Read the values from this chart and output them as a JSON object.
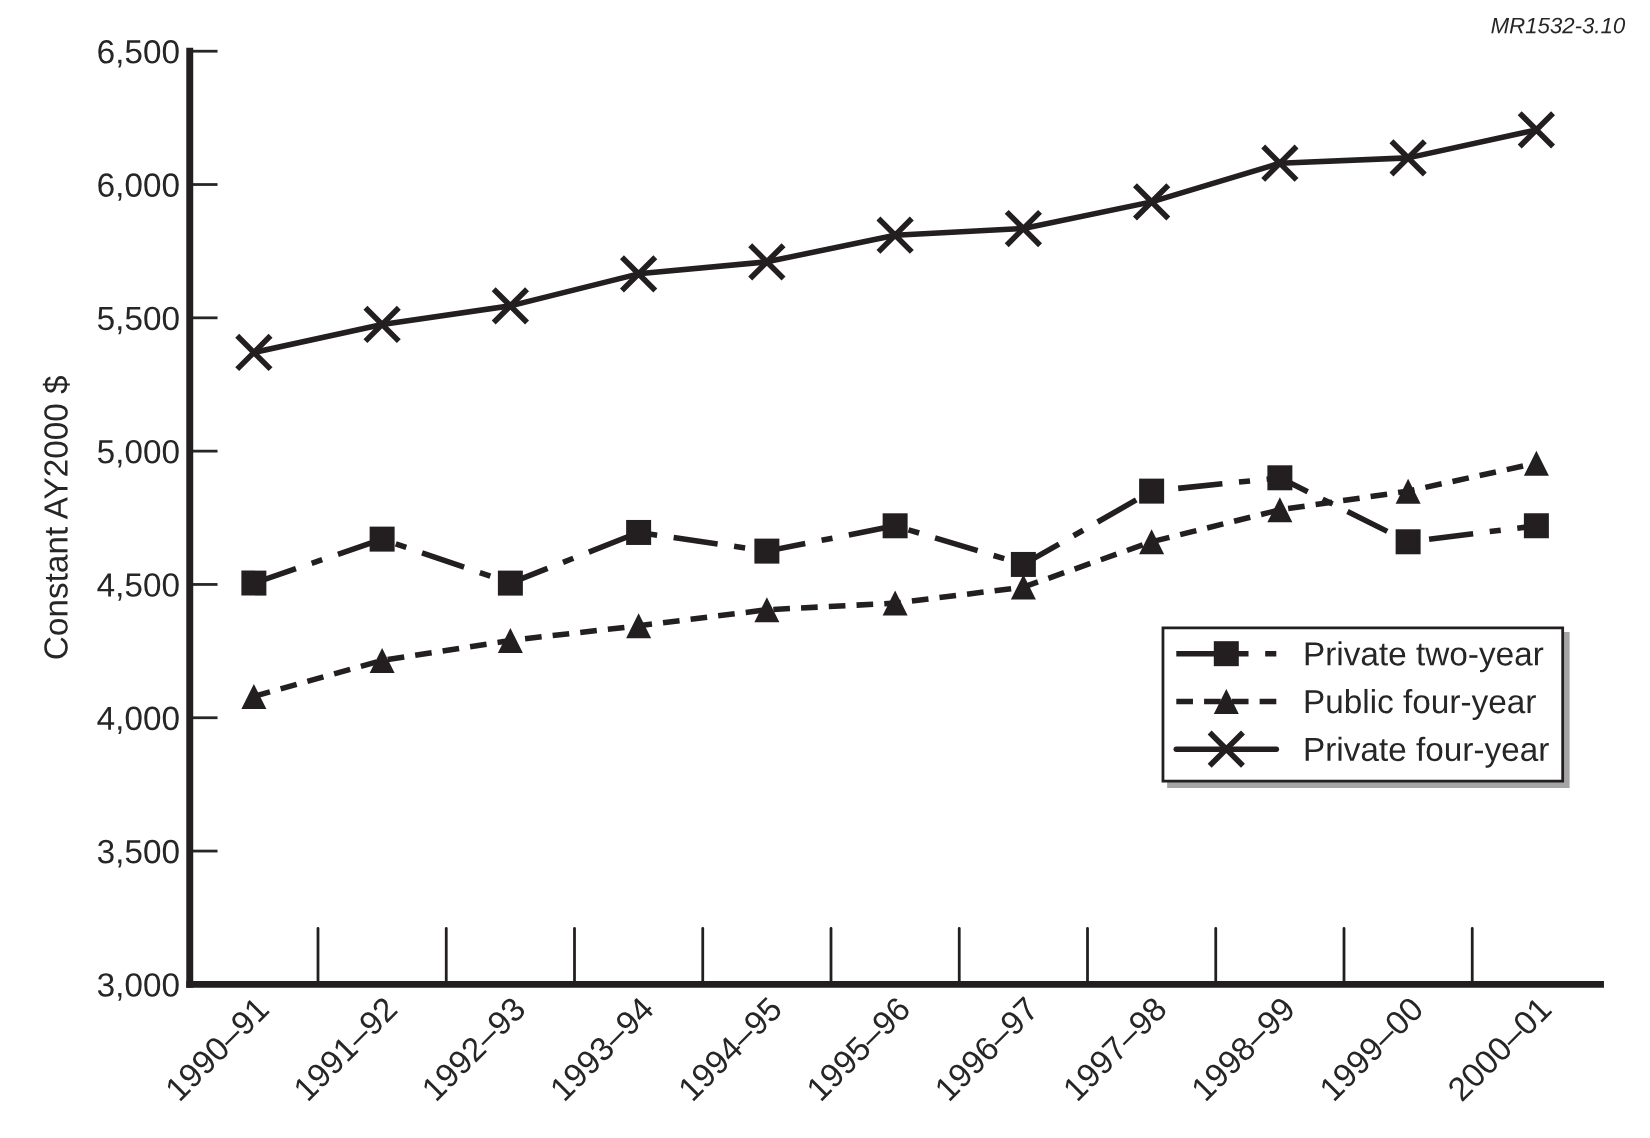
{
  "chart_data": {
    "type": "line",
    "ylabel": "Constant AY2000 $",
    "categories": [
      "1990–91",
      "1991–92",
      "1992–93",
      "1993–94",
      "1994–95",
      "1995–96",
      "1996–97",
      "1997–98",
      "1998–99",
      "1999–00",
      "2000–01"
    ],
    "series": [
      {
        "name": "Private two-year",
        "color": "#231f20",
        "marker": "square",
        "line_style": "dashdot",
        "values": [
          4505,
          4670,
          4505,
          4695,
          4625,
          4720,
          4575,
          4850,
          4900,
          4660,
          4720
        ]
      },
      {
        "name": "Public four-year",
        "color": "#231f20",
        "marker": "triangle",
        "line_style": "dashed",
        "values": [
          4080,
          4215,
          4290,
          4345,
          4405,
          4430,
          4490,
          4660,
          4780,
          4850,
          4955
        ]
      },
      {
        "name": "Private four-year",
        "color": "#231f20",
        "marker": "cross",
        "line_style": "solid",
        "values": [
          5370,
          5475,
          5545,
          5665,
          5710,
          5810,
          5835,
          5935,
          6080,
          6100,
          6205
        ]
      }
    ],
    "ylim": [
      3000,
      6500
    ],
    "yticks": [
      {
        "value": 3000,
        "label": "3,000"
      },
      {
        "value": 3500,
        "label": "3,500"
      },
      {
        "value": 4000,
        "label": "4,000"
      },
      {
        "value": 4500,
        "label": "4,500"
      },
      {
        "value": 5000,
        "label": "5,000"
      },
      {
        "value": 5500,
        "label": "5,500"
      },
      {
        "value": 6000,
        "label": "6,000"
      },
      {
        "value": 6500,
        "label": "6,500"
      }
    ],
    "grid": false,
    "legend": "bottom right",
    "annotations": [
      "MR1532-3.10"
    ]
  }
}
